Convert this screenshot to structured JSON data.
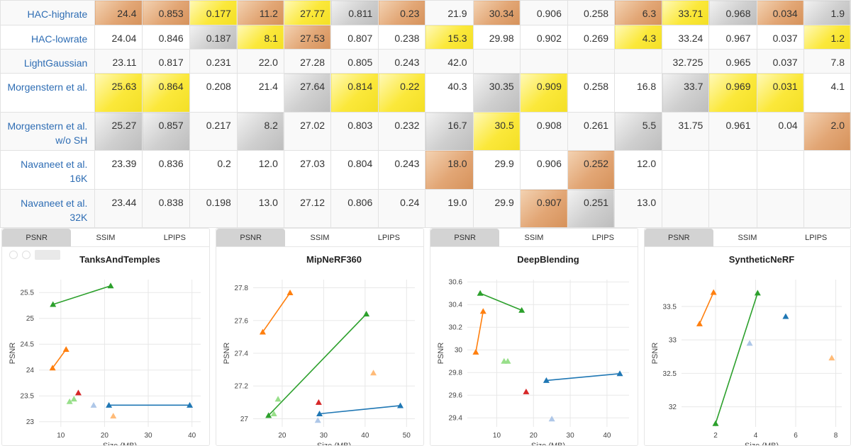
{
  "table": {
    "rows": [
      {
        "method": "HAC-highrate",
        "values": [
          "24.4",
          "0.853",
          "0.177",
          "11.2",
          "27.77",
          "0.811",
          "0.23",
          "21.9",
          "30.34",
          "0.906",
          "0.258",
          "6.3",
          "33.71",
          "0.968",
          "0.034",
          "1.9"
        ],
        "medals": [
          "bronze",
          "bronze",
          "gold",
          "bronze",
          "gold",
          "silver",
          "bronze",
          "",
          "bronze",
          "",
          "",
          "bronze",
          "gold",
          "silver",
          "bronze",
          "silver"
        ]
      },
      {
        "method": "HAC-lowrate",
        "values": [
          "24.04",
          "0.846",
          "0.187",
          "8.1",
          "27.53",
          "0.807",
          "0.238",
          "15.3",
          "29.98",
          "0.902",
          "0.269",
          "4.3",
          "33.24",
          "0.967",
          "0.037",
          "1.2"
        ],
        "medals": [
          "",
          "",
          "silver",
          "gold",
          "bronze",
          "",
          "",
          "gold",
          "",
          "",
          "",
          "gold",
          "",
          "",
          "",
          "gold"
        ]
      },
      {
        "method": "LightGaussian",
        "values": [
          "23.11",
          "0.817",
          "0.231",
          "22.0",
          "27.28",
          "0.805",
          "0.243",
          "42.0",
          "",
          "",
          "",
          "",
          "32.725",
          "0.965",
          "0.037",
          "7.8"
        ],
        "medals": [
          "",
          "",
          "",
          "",
          "",
          "",
          "",
          "",
          "",
          "",
          "",
          "",
          "",
          "",
          "",
          ""
        ]
      },
      {
        "method": "Morgenstern et al.",
        "values": [
          "25.63",
          "0.864",
          "0.208",
          "21.4",
          "27.64",
          "0.814",
          "0.22",
          "40.3",
          "30.35",
          "0.909",
          "0.258",
          "16.8",
          "33.7",
          "0.969",
          "0.031",
          "4.1"
        ],
        "medals": [
          "gold",
          "gold",
          "",
          "",
          "silver",
          "gold",
          "gold",
          "",
          "silver",
          "gold",
          "",
          "",
          "silver",
          "gold",
          "gold",
          ""
        ]
      },
      {
        "method": "Morgenstern et al. w/o SH",
        "values": [
          "25.27",
          "0.857",
          "0.217",
          "8.2",
          "27.02",
          "0.803",
          "0.232",
          "16.7",
          "30.5",
          "0.908",
          "0.261",
          "5.5",
          "31.75",
          "0.961",
          "0.04",
          "2.0"
        ],
        "medals": [
          "silver",
          "silver",
          "",
          "silver",
          "",
          "",
          "",
          "silver",
          "gold",
          "",
          "",
          "silver",
          "",
          "",
          "",
          "bronze"
        ]
      },
      {
        "method": "Navaneet et al. 16K",
        "values": [
          "23.39",
          "0.836",
          "0.2",
          "12.0",
          "27.03",
          "0.804",
          "0.243",
          "18.0",
          "29.9",
          "0.906",
          "0.252",
          "12.0",
          "",
          "",
          "",
          ""
        ],
        "medals": [
          "",
          "",
          "",
          "",
          "",
          "",
          "",
          "bronze",
          "",
          "",
          "bronze",
          "",
          "",
          "",
          "",
          ""
        ]
      },
      {
        "method": "Navaneet et al. 32K",
        "values": [
          "23.44",
          "0.838",
          "0.198",
          "13.0",
          "27.12",
          "0.806",
          "0.24",
          "19.0",
          "29.9",
          "0.907",
          "0.251",
          "13.0",
          "",
          "",
          "",
          ""
        ],
        "medals": [
          "",
          "",
          "",
          "",
          "",
          "",
          "",
          "",
          "",
          "bronze",
          "silver",
          "",
          "",
          "",
          "",
          ""
        ]
      }
    ]
  },
  "panels": [
    {
      "tabs": [
        "PSNR",
        "SSIM",
        "LPIPS"
      ],
      "active_tab": "PSNR",
      "chart_data": {
        "type": "scatter",
        "title": "TanksAndTemples",
        "xlabel": "Size (MB)",
        "ylabel": "PSNR",
        "xlim": [
          5,
          42
        ],
        "ylim": [
          22.9,
          25.75
        ],
        "xticks": [
          10,
          20,
          30,
          40
        ],
        "yticks": [
          23,
          23.5,
          24,
          24.5,
          25,
          25.5
        ],
        "ytick_labels": [
          "23",
          "23.5",
          "24",
          "24.5",
          "25",
          "25.5"
        ],
        "grid": true,
        "series": [
          {
            "color": "#2ca02c",
            "points": [
              [
                8.2,
                25.27
              ],
              [
                21.4,
                25.63
              ]
            ],
            "line": true
          },
          {
            "color": "#ff7f0e",
            "points": [
              [
                8.1,
                24.04
              ],
              [
                11.2,
                24.4
              ]
            ],
            "line": true
          },
          {
            "color": "#1f77b4",
            "points": [
              [
                21.0,
                23.32
              ],
              [
                39.5,
                23.32
              ]
            ],
            "line": true
          },
          {
            "color": "#98df8a",
            "points": [
              [
                12.0,
                23.39
              ],
              [
                13.0,
                23.44
              ]
            ],
            "line": false
          },
          {
            "color": "#d62728",
            "points": [
              [
                14.0,
                23.56
              ]
            ],
            "line": false
          },
          {
            "color": "#aec7e8",
            "points": [
              [
                17.5,
                23.32
              ]
            ],
            "line": false
          },
          {
            "color": "#ffbb78",
            "points": [
              [
                22.0,
                23.11
              ]
            ],
            "line": false
          }
        ]
      }
    },
    {
      "tabs": [
        "PSNR",
        "SSIM",
        "LPIPS"
      ],
      "active_tab": "PSNR",
      "chart_data": {
        "type": "scatter",
        "title": "MipNeRF360",
        "xlabel": "Size (MB)",
        "ylabel": "PSNR",
        "xlim": [
          13,
          52
        ],
        "ylim": [
          26.95,
          27.85
        ],
        "xticks": [
          20,
          30,
          40,
          50
        ],
        "yticks": [
          27,
          27.2,
          27.4,
          27.6,
          27.8
        ],
        "ytick_labels": [
          "27",
          "27.2",
          "27.4",
          "27.6",
          "27.8"
        ],
        "grid": true,
        "series": [
          {
            "color": "#ff7f0e",
            "points": [
              [
                15.3,
                27.53
              ],
              [
                21.9,
                27.77
              ]
            ],
            "line": true
          },
          {
            "color": "#2ca02c",
            "points": [
              [
                16.7,
                27.02
              ],
              [
                40.3,
                27.64
              ]
            ],
            "line": true
          },
          {
            "color": "#1f77b4",
            "points": [
              [
                29.0,
                27.03
              ],
              [
                48.5,
                27.08
              ]
            ],
            "line": true
          },
          {
            "color": "#98df8a",
            "points": [
              [
                18.0,
                27.03
              ],
              [
                19.0,
                27.12
              ]
            ],
            "line": false
          },
          {
            "color": "#d62728",
            "points": [
              [
                28.8,
                27.1
              ]
            ],
            "line": false
          },
          {
            "color": "#aec7e8",
            "points": [
              [
                28.6,
                26.99
              ]
            ],
            "line": false
          },
          {
            "color": "#ffbb78",
            "points": [
              [
                42.0,
                27.28
              ]
            ],
            "line": false
          }
        ]
      }
    },
    {
      "tabs": [
        "PSNR",
        "SSIM",
        "LPIPS"
      ],
      "active_tab": "PSNR",
      "chart_data": {
        "type": "scatter",
        "title": "DeepBlending",
        "xlabel": "Size (MB)",
        "ylabel": "PSNR",
        "xlim": [
          2,
          46
        ],
        "ylim": [
          29.32,
          30.62
        ],
        "xticks": [
          10,
          20,
          30,
          40
        ],
        "yticks": [
          29.4,
          29.6,
          29.8,
          30,
          30.2,
          30.4,
          30.6
        ],
        "ytick_labels": [
          "29.4",
          "29.6",
          "29.8",
          "30",
          "30.2",
          "30.4",
          "30.6"
        ],
        "grid": true,
        "series": [
          {
            "color": "#2ca02c",
            "points": [
              [
                5.5,
                30.5
              ],
              [
                16.8,
                30.35
              ]
            ],
            "line": true
          },
          {
            "color": "#ff7f0e",
            "points": [
              [
                4.3,
                29.98
              ],
              [
                6.3,
                30.34
              ]
            ],
            "line": true
          },
          {
            "color": "#1f77b4",
            "points": [
              [
                23.5,
                29.73
              ],
              [
                43.5,
                29.79
              ]
            ],
            "line": true
          },
          {
            "color": "#98df8a",
            "points": [
              [
                12.0,
                29.9
              ],
              [
                13.0,
                29.9
              ]
            ],
            "line": false
          },
          {
            "color": "#d62728",
            "points": [
              [
                18.0,
                29.63
              ]
            ],
            "line": false
          },
          {
            "color": "#aec7e8",
            "points": [
              [
                25.0,
                29.39
              ]
            ],
            "line": false
          }
        ]
      }
    },
    {
      "tabs": [
        "PSNR",
        "SSIM",
        "LPIPS"
      ],
      "active_tab": "PSNR",
      "chart_data": {
        "type": "scatter",
        "title": "SyntheticNeRF",
        "xlabel": "Size (MB)",
        "ylabel": "PSNR",
        "xlim": [
          0.3,
          8.3
        ],
        "ylim": [
          31.7,
          33.9
        ],
        "xticks": [
          2,
          4,
          6,
          8
        ],
        "yticks": [
          32,
          32.5,
          33,
          33.5
        ],
        "ytick_labels": [
          "32",
          "32.5",
          "33",
          "33.5"
        ],
        "grid": true,
        "series": [
          {
            "color": "#ff7f0e",
            "points": [
              [
                1.2,
                33.24
              ],
              [
                1.9,
                33.71
              ]
            ],
            "line": true
          },
          {
            "color": "#2ca02c",
            "points": [
              [
                2.0,
                31.75
              ],
              [
                4.1,
                33.7
              ]
            ],
            "line": true
          },
          {
            "color": "#1f77b4",
            "points": [
              [
                5.5,
                33.35
              ]
            ],
            "line": false
          },
          {
            "color": "#aec7e8",
            "points": [
              [
                3.7,
                32.95
              ]
            ],
            "line": false
          },
          {
            "color": "#ffbb78",
            "points": [
              [
                7.8,
                32.73
              ]
            ],
            "line": false
          }
        ]
      }
    }
  ]
}
